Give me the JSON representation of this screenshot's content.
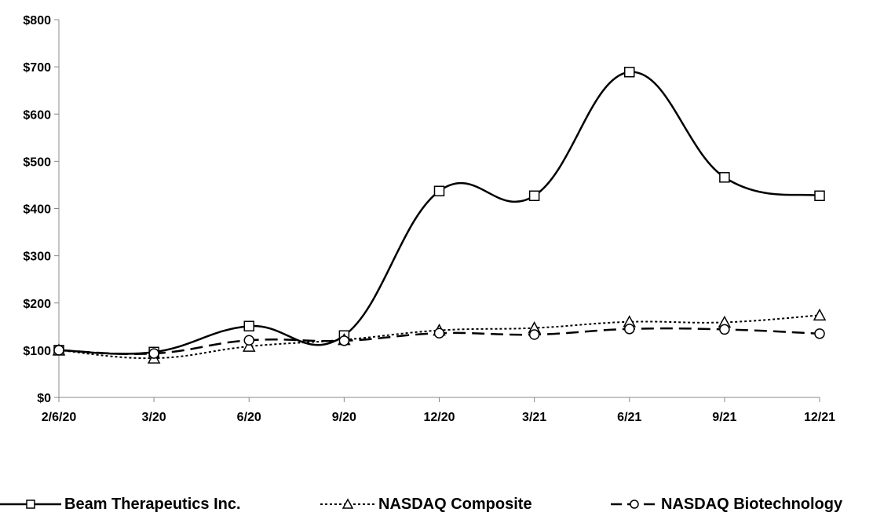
{
  "chart_data": {
    "type": "line",
    "title": "",
    "xlabel": "",
    "ylabel": "",
    "categories": [
      "2/6/20",
      "3/20",
      "6/20",
      "9/20",
      "12/20",
      "3/21",
      "6/21",
      "9/21",
      "12/21"
    ],
    "y_ticks": [
      "$0",
      "$100",
      "$200",
      "$300",
      "$400",
      "$500",
      "$600",
      "$700",
      "$800"
    ],
    "ylim": [
      0,
      800
    ],
    "grid": false,
    "legend_position": "bottom",
    "series": [
      {
        "name": "Beam Therapeutics Inc.",
        "marker": "square",
        "dash": "solid",
        "values": [
          100,
          96,
          151,
          131,
          437,
          427,
          689,
          466,
          427
        ]
      },
      {
        "name": "NASDAQ Composite",
        "marker": "triangle",
        "dash": "dotted",
        "values": [
          100,
          83,
          108,
          122,
          142,
          147,
          160,
          159,
          174
        ]
      },
      {
        "name": "NASDAQ Biotechnology",
        "marker": "circle",
        "dash": "dashed",
        "values": [
          100,
          93,
          121,
          120,
          136,
          133,
          145,
          144,
          135
        ]
      }
    ]
  }
}
